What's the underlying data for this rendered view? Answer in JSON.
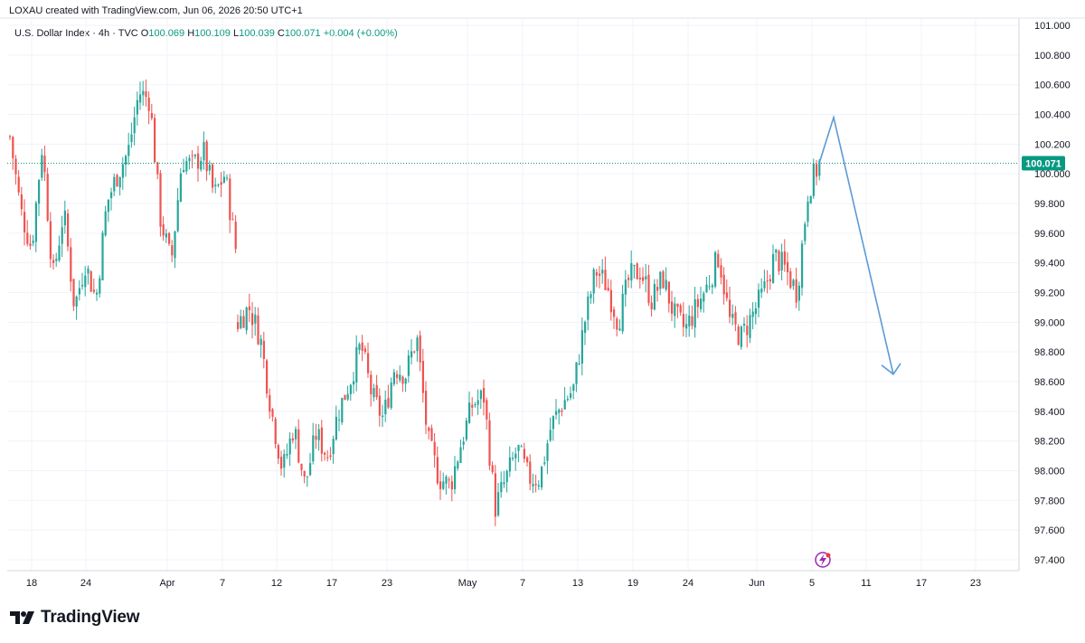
{
  "header": {
    "text": "LOXAU created with TradingView.com, Jun 06, 2026 20:50 UTC+1"
  },
  "legend": {
    "symbol": "U.S. Dollar Index · 4h · TVC",
    "open_label": "O",
    "open": "100.069",
    "high_label": "H",
    "high": "100.109",
    "low_label": "L",
    "low": "100.039",
    "close_label": "C",
    "close": "100.071",
    "change": "+0.004 (+0.00%)"
  },
  "colors": {
    "up": "#26a69a",
    "down": "#ef5350",
    "arrow": "#5b9bd5",
    "price_line": "#089981",
    "badge_bg": "#089981"
  },
  "footer": {
    "brand": "TradingView",
    "logo_icon": "tradingview-logo-icon"
  },
  "chart_data": {
    "type": "candlestick",
    "timeframe": "4h",
    "ylim": [
      97.3,
      101.0
    ],
    "y_ticks": [
      "101.000",
      "100.800",
      "100.600",
      "100.400",
      "100.200",
      "100.000",
      "99.800",
      "99.600",
      "99.400",
      "99.200",
      "99.000",
      "98.800",
      "98.600",
      "98.400",
      "98.200",
      "98.000",
      "97.800",
      "97.600",
      "97.400"
    ],
    "x_ticks": [
      "18",
      "24",
      "Apr",
      "7",
      "12",
      "17",
      "23",
      "May",
      "7",
      "13",
      "19",
      "24",
      "Jun",
      "5",
      "11",
      "17",
      "23"
    ],
    "last_price": "100.071",
    "path": [
      [
        "Mar 16",
        100.25
      ],
      [
        "Mar 17",
        99.75
      ],
      [
        "Mar 18",
        99.5
      ],
      [
        "Mar 19",
        100.2
      ],
      [
        "Mar 20",
        99.3
      ],
      [
        "Mar 21",
        99.75
      ],
      [
        "Mar 23",
        99.1
      ],
      [
        "Mar 24",
        99.4
      ],
      [
        "Mar 25",
        99.15
      ],
      [
        "Mar 26",
        99.8
      ],
      [
        "Mar 27",
        100.0
      ],
      [
        "Mar 28",
        100.15
      ],
      [
        "Mar 30",
        100.55
      ],
      [
        "Mar 31",
        100.5
      ],
      [
        "Apr 1",
        99.7
      ],
      [
        "Apr 2",
        99.4
      ],
      [
        "Apr 3",
        100.1
      ],
      [
        "Apr 4",
        100.05
      ],
      [
        "Apr 6",
        100.15
      ],
      [
        "Apr 7",
        99.85
      ],
      [
        "Apr 8",
        100.0
      ],
      [
        "Apr 9",
        99.5
      ]
    ],
    "path_2": [
      [
        "Apr 9",
        99.0
      ],
      [
        "Apr 10",
        99.1
      ],
      [
        "Apr 11",
        98.9
      ],
      [
        "Apr 13",
        98.4
      ],
      [
        "Apr 14",
        98.0
      ],
      [
        "Apr 15",
        98.3
      ],
      [
        "Apr 16",
        97.9
      ],
      [
        "Apr 17",
        98.25
      ],
      [
        "Apr 20",
        98.1
      ],
      [
        "Apr 21",
        98.4
      ],
      [
        "Apr 23",
        98.6
      ],
      [
        "Apr 24",
        98.85
      ],
      [
        "Apr 25",
        98.5
      ],
      [
        "Apr 26",
        98.35
      ],
      [
        "Apr 27",
        98.7
      ],
      [
        "Apr 28",
        98.65
      ],
      [
        "Apr 29",
        98.9
      ],
      [
        "Apr 30",
        98.2
      ],
      [
        "May 1",
        97.95
      ],
      [
        "May 2",
        97.9
      ],
      [
        "May 3",
        98.2
      ],
      [
        "May 4",
        98.45
      ],
      [
        "May 5",
        98.5
      ],
      [
        "May 6",
        97.75
      ],
      [
        "May 7",
        97.95
      ],
      [
        "May 8",
        98.15
      ],
      [
        "May 9",
        97.95
      ],
      [
        "May 10",
        97.95
      ],
      [
        "May 11",
        98.3
      ],
      [
        "May 12",
        98.45
      ],
      [
        "May 13",
        98.55
      ],
      [
        "May 14",
        99.0
      ],
      [
        "May 15",
        99.35
      ],
      [
        "May 16",
        99.25
      ],
      [
        "May 17",
        99.0
      ],
      [
        "May 19",
        99.3
      ],
      [
        "May 20",
        99.35
      ],
      [
        "May 21",
        99.15
      ],
      [
        "May 22",
        99.3
      ],
      [
        "May 23",
        99.05
      ],
      [
        "May 25",
        98.95
      ],
      [
        "May 26",
        99.1
      ],
      [
        "May 27",
        99.25
      ],
      [
        "May 28",
        99.45
      ],
      [
        "May 29",
        99.0
      ],
      [
        "May 30",
        98.9
      ],
      [
        "Jun 1",
        99.05
      ],
      [
        "Jun 2",
        99.2
      ],
      [
        "Jun 3",
        99.45
      ],
      [
        "Jun 4",
        99.35
      ],
      [
        "Jun 5",
        99.2
      ],
      [
        "Jun 5 b",
        99.9
      ],
      [
        "Jun 6",
        100.07
      ]
    ],
    "projection_arrow": [
      [
        "Jun 6",
        100.07
      ],
      [
        "Jun 7",
        100.38
      ],
      [
        "Jun 14",
        98.65
      ]
    ]
  }
}
